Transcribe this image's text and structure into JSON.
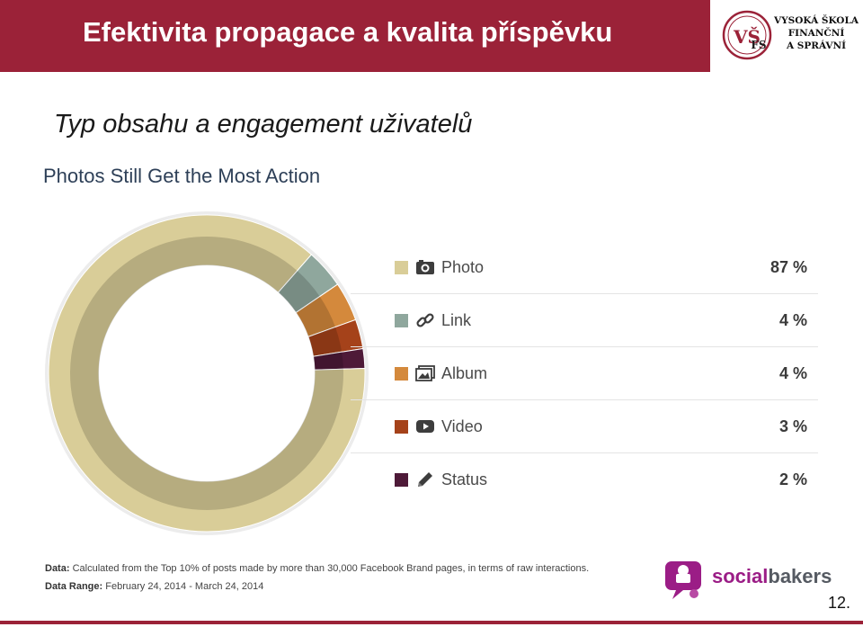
{
  "header": {
    "title": "Efektivita propagace a kvalita příspěvku",
    "logo": {
      "initials": "VŠFS",
      "line1": "VYSOKÁ ŠKOLA",
      "line2": "FINANČNÍ",
      "line3": "A SPRÁVNÍ"
    }
  },
  "subtitle": "Typ obsahu a engagement uživatelů",
  "chart_data": {
    "type": "pie",
    "title": "Photos Still Get the Most Action",
    "categories": [
      "Photo",
      "Link",
      "Album",
      "Video",
      "Status"
    ],
    "values": [
      87,
      4,
      4,
      3,
      2
    ],
    "value_labels": [
      "87 %",
      "4 %",
      "4 %",
      "3 %",
      "2 %"
    ],
    "colors": [
      "#d9cd98",
      "#8fa79d",
      "#d4893c",
      "#a5421a",
      "#4e1a38"
    ],
    "icons": [
      "camera-icon",
      "link-icon",
      "album-icon",
      "video-icon",
      "pencil-icon"
    ],
    "donut": true,
    "legend_position": "right"
  },
  "footnotes": {
    "data_label": "Data:",
    "data_text": "Calculated from the Top 10% of posts made by more than 30,000 Facebook Brand pages, in terms of raw interactions.",
    "range_label": "Data Range:",
    "range_text": "February 24, 2014 - March 24, 2014"
  },
  "brand": {
    "part1": "social",
    "part2": "bakers",
    "color1": "#9b1d86",
    "color2": "#555a62"
  },
  "page_number": "12."
}
